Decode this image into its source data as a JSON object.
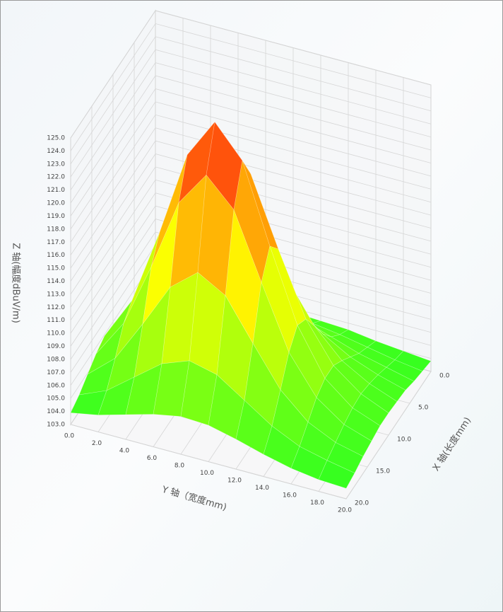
{
  "chart_data": {
    "type": "surface",
    "xlabel": "X 轴(长度mm)",
    "ylabel": "Y 轴（宽度mm)",
    "zlabel": "Z 轴(幅度dBuV/m)",
    "x": [
      0,
      2,
      4,
      6,
      8,
      10,
      12,
      14,
      16,
      18,
      20
    ],
    "y": [
      0,
      2,
      4,
      6,
      8,
      10,
      12,
      14,
      16,
      18,
      20
    ],
    "z": [
      [
        103.8,
        104.0,
        104.3,
        104.5,
        104.7,
        104.7,
        104.6,
        104.5,
        104.2,
        104.0,
        103.8
      ],
      [
        104.0,
        104.4,
        104.8,
        105.2,
        105.5,
        105.6,
        105.4,
        105.1,
        104.7,
        104.3,
        104.0
      ],
      [
        104.3,
        104.9,
        105.8,
        106.7,
        107.2,
        107.2,
        106.6,
        105.9,
        105.2,
        104.7,
        104.2
      ],
      [
        104.7,
        105.9,
        107.7,
        109.6,
        110.7,
        110.2,
        108.7,
        107.1,
        105.9,
        105.1,
        104.5
      ],
      [
        105.3,
        107.3,
        110.7,
        114.4,
        116.2,
        115.0,
        111.8,
        108.7,
        106.6,
        105.4,
        104.6
      ],
      [
        105.8,
        108.7,
        113.8,
        119.4,
        122.2,
        120.2,
        115.0,
        110.2,
        107.2,
        105.6,
        104.7
      ],
      [
        105.9,
        109.2,
        115.0,
        121.5,
        124.6,
        122.2,
        116.2,
        110.7,
        107.2,
        105.5,
        104.7
      ],
      [
        105.5,
        108.4,
        113.3,
        118.8,
        121.5,
        119.4,
        114.4,
        109.6,
        106.7,
        105.2,
        104.5
      ],
      [
        104.9,
        106.7,
        109.9,
        113.3,
        115.0,
        113.8,
        110.7,
        107.7,
        105.8,
        104.8,
        104.3
      ],
      [
        104.3,
        105.2,
        106.8,
        108.4,
        109.2,
        108.7,
        107.3,
        105.9,
        104.9,
        104.4,
        104.0
      ],
      [
        103.9,
        104.3,
        104.9,
        105.5,
        105.9,
        105.8,
        105.3,
        104.7,
        104.2,
        103.9,
        103.8
      ]
    ],
    "xlim": [
      0,
      20
    ],
    "ylim": [
      0,
      20
    ],
    "zlim": [
      103,
      125
    ],
    "xticks": [
      {
        "value": 0,
        "label": "0.0"
      },
      {
        "value": 5,
        "label": "5.0"
      },
      {
        "value": 10,
        "label": "10.0"
      },
      {
        "value": 15,
        "label": "15.0"
      },
      {
        "value": 20,
        "label": "20.0"
      }
    ],
    "yticks": [
      {
        "value": 0,
        "label": "0.0"
      },
      {
        "value": 2,
        "label": "2.0"
      },
      {
        "value": 4,
        "label": "4.0"
      },
      {
        "value": 6,
        "label": "6.0"
      },
      {
        "value": 8,
        "label": "8.0"
      },
      {
        "value": 10,
        "label": "10.0"
      },
      {
        "value": 12,
        "label": "12.0"
      },
      {
        "value": 14,
        "label": "14.0"
      },
      {
        "value": 16,
        "label": "16.0"
      },
      {
        "value": 18,
        "label": "18.0"
      },
      {
        "value": 20,
        "label": "20.0"
      }
    ],
    "zticks": [
      {
        "value": 103,
        "label": "103.0"
      },
      {
        "value": 104,
        "label": "104.0"
      },
      {
        "value": 105,
        "label": "105.0"
      },
      {
        "value": 106,
        "label": "106.0"
      },
      {
        "value": 107,
        "label": "107.0"
      },
      {
        "value": 108,
        "label": "108.0"
      },
      {
        "value": 109,
        "label": "109.0"
      },
      {
        "value": 110,
        "label": "110.0"
      },
      {
        "value": 111,
        "label": "111.0"
      },
      {
        "value": 112,
        "label": "112.0"
      },
      {
        "value": 113,
        "label": "113.0"
      },
      {
        "value": 114,
        "label": "114.0"
      },
      {
        "value": 115,
        "label": "115.0"
      },
      {
        "value": 116,
        "label": "116.0"
      },
      {
        "value": 117,
        "label": "117.0"
      },
      {
        "value": 118,
        "label": "118.0"
      },
      {
        "value": 119,
        "label": "119.0"
      },
      {
        "value": 120,
        "label": "120.0"
      },
      {
        "value": 121,
        "label": "121.0"
      },
      {
        "value": 122,
        "label": "122.0"
      },
      {
        "value": 123,
        "label": "123.0"
      },
      {
        "value": 124,
        "label": "124.0"
      },
      {
        "value": 125,
        "label": "125.0"
      }
    ],
    "colormap": [
      "#22ff22",
      "#ffff00",
      "#ff1010"
    ],
    "grid": true
  }
}
